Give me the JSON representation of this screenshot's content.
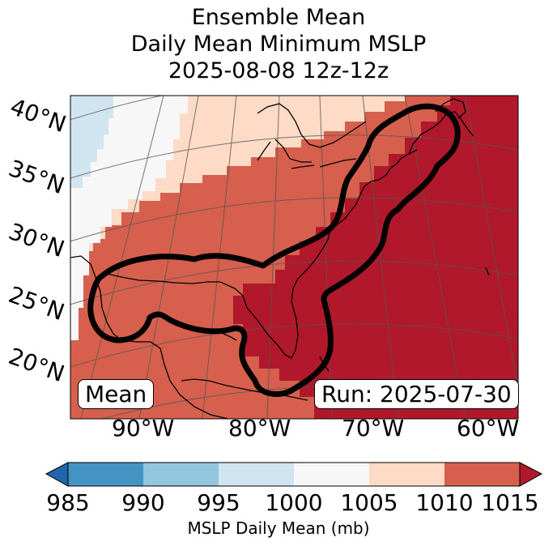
{
  "title": {
    "line1": "Ensemble Mean",
    "line2": "Daily Mean Minimum MSLP",
    "line3": "2025-08-08 12z-12z"
  },
  "map": {
    "lat_labels": [
      "40°N",
      "35°N",
      "30°N",
      "25°N",
      "20°N"
    ],
    "lon_labels": [
      "90°W",
      "80°W",
      "70°W",
      "60°W"
    ],
    "mean_badge": "Mean",
    "run_badge": "Run: 2025-07-30",
    "contour_color": "#000000",
    "land_color": "#000000"
  },
  "colorbar": {
    "ticks": [
      "985",
      "990",
      "995",
      "1000",
      "1005",
      "1010",
      "1015"
    ],
    "label": "MSLP Daily Mean (mb)",
    "colors": {
      "below_985": "#2166ac",
      "985-990": "#4393c3",
      "990-995": "#92c5de",
      "995-1000": "#d1e5f0",
      "1000-1005": "#f7f7f7",
      "1005-1010": "#fddbc7",
      "1010-1015": "#d6604d",
      "above_1015": "#b2182b"
    }
  }
}
